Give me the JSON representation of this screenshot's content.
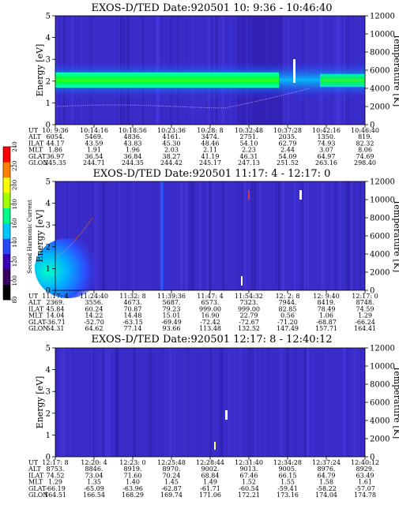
{
  "chart_data": [
    {
      "type": "heatmap",
      "title": "EXOS-D/TED   Date:920501  10: 9:36 - 10:46:40",
      "ylabel": "Energy [eV]",
      "ylabel_right": "Temperature [K]",
      "ylim": [
        0,
        5
      ],
      "yticks": [
        "0",
        "1",
        "2",
        "3",
        "4",
        "5"
      ],
      "ylim_right": [
        0,
        12000
      ],
      "yticks_right": [
        "0",
        "2000",
        "4000",
        "6000",
        "8000",
        "10000",
        "12000"
      ],
      "band": {
        "energy_center": 2.05,
        "energy_halfwidth": 0.35,
        "intensity": 200
      },
      "table": {
        "row_labels": [
          "UT",
          "ALT",
          "ILAT",
          "MLT",
          "GLAT",
          "GLON"
        ],
        "columns": [
          [
            "10: 9:36",
            "6054.",
            "44.17",
            "1.86",
            "36.97",
            "245.35"
          ],
          [
            "10:14:16",
            "5469.",
            "43.59",
            "1.91",
            "36.54",
            "244.71"
          ],
          [
            "10:18:56",
            "4836.",
            "43.83",
            "1.96",
            "36.84",
            "244.35"
          ],
          [
            "10:23:36",
            "4161.",
            "45.30",
            "2.03",
            "38.27",
            "244.42"
          ],
          [
            "10:28: 8",
            "3474.",
            "48.46",
            "2.11",
            "41.19",
            "245.17"
          ],
          [
            "10:32:48",
            "2751.",
            "54.10",
            "2.23",
            "46.31",
            "247.13"
          ],
          [
            "10:37:28",
            "2035.",
            "62.79",
            "2.44",
            "54.09",
            "251.52"
          ],
          [
            "10:42:16",
            "1350.",
            "74.93",
            "3.07",
            "64.97",
            "263.16"
          ],
          [
            "10:46:40",
            "819.",
            "82.32",
            "8.06",
            "74.69",
            "298.40"
          ]
        ]
      }
    },
    {
      "type": "heatmap",
      "title": "EXOS-D/TED   Date:920501  11:17: 4 - 12:17: 0",
      "ylabel": "Energy [eV]",
      "ylabel_right": "Temperature [K]",
      "ylim": [
        0,
        5
      ],
      "yticks": [
        "0",
        "1",
        "2",
        "3",
        "4",
        "5"
      ],
      "ylim_right": [
        0,
        12000
      ],
      "yticks_right": [
        "0",
        "2000",
        "4000",
        "6000",
        "8000",
        "10000",
        "12000"
      ],
      "table": {
        "row_labels": [
          "UT",
          "ALT",
          "ILAT",
          "MLT",
          "GLAT",
          "GLON"
        ],
        "columns": [
          [
            "11:17: 4",
            "2369.",
            "45.84",
            "14.04",
            "-36.71",
            "54.31"
          ],
          [
            "11:24:40",
            "3556.",
            "60.24",
            "14.22",
            "-52.70",
            "64.62"
          ],
          [
            "11:32: 8",
            "4673.",
            "70.87",
            "14.48",
            "-63.15",
            "77.14"
          ],
          [
            "11:39:36",
            "5687.",
            "79.23",
            "15.01",
            "-69.49",
            "93.66"
          ],
          [
            "11:47: 4",
            "6573.",
            "999.00",
            "16.90",
            "-72.42",
            "113.48"
          ],
          [
            "11:54:32",
            "7323.",
            "999.00",
            "22.79",
            "-72.67",
            "132.52"
          ],
          [
            "12: 2: 8",
            "7944.",
            "82.85",
            "0.56",
            "-71.20",
            "147.49"
          ],
          [
            "12: 9:40",
            "8419.",
            "78.49",
            "1.06",
            "-68.87",
            "157.71"
          ],
          [
            "12:17: 0",
            "8748.",
            "74.59",
            "1.29",
            "-66.24",
            "164.41"
          ]
        ]
      }
    },
    {
      "type": "heatmap",
      "title": "EXOS-D/TED   Date:920501  12:17: 8 - 12:40:12",
      "ylabel": "Energy [eV]",
      "ylabel_right": "Temperature [K]",
      "ylim": [
        0,
        5
      ],
      "yticks": [
        "0",
        "1",
        "2",
        "3",
        "4",
        "5"
      ],
      "ylim_right": [
        0,
        12000
      ],
      "yticks_right": [
        "0",
        "2000",
        "4000",
        "6000",
        "8000",
        "10000",
        "12000"
      ],
      "table": {
        "row_labels": [
          "UT",
          "ALT",
          "ILAT",
          "MLT",
          "GLAT",
          "GLON"
        ],
        "columns": [
          [
            "12:17: 8",
            "8753.",
            "74.52",
            "1.29",
            "-66.19",
            "164.51"
          ],
          [
            "12:20: 4",
            "8846.",
            "73.04",
            "1.35",
            "-65.09",
            "166.54"
          ],
          [
            "12:23: 0",
            "8919.",
            "71.60",
            "1.40",
            "-63.96",
            "168.29"
          ],
          [
            "12:25:48",
            "8970.",
            "70.24",
            "1.45",
            "-62.87",
            "169.74"
          ],
          [
            "12:28:44",
            "9002.",
            "68.84",
            "1.49",
            "-61.71",
            "171.06"
          ],
          [
            "12:31:40",
            "9013.",
            "67.46",
            "1.52",
            "-60.54",
            "172.21"
          ],
          [
            "12:34:28",
            "9005.",
            "66.15",
            "1.55",
            "-59.41",
            "173.16"
          ],
          [
            "12:37:24",
            "8976.",
            "64.79",
            "1.58",
            "-58.22",
            "174.04"
          ],
          [
            "12:40:12",
            "8929.",
            "63.49",
            "1.61",
            "-57.07",
            "174.78"
          ]
        ]
      }
    }
  ],
  "colorbar": {
    "label": "Second Harmonic Current",
    "ticks": [
      "80",
      "100",
      "120",
      "140",
      "160",
      "180",
      "200",
      "220",
      "240"
    ],
    "colors": [
      "#000000",
      "#3a0060",
      "#3c00b4",
      "#2848ff",
      "#00c8ff",
      "#00ff88",
      "#a0ff00",
      "#ffff00",
      "#ff8000",
      "#ff0000"
    ]
  }
}
